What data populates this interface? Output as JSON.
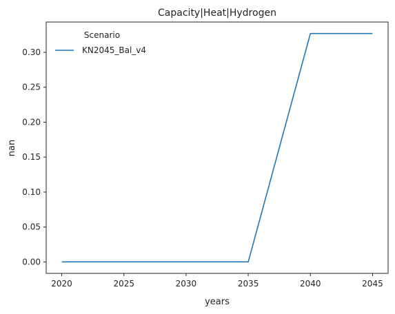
{
  "chart_data": {
    "type": "line",
    "title": "Capacity|Heat|Hydrogen",
    "xlabel": "years",
    "ylabel": "nan",
    "x": [
      2020,
      2025,
      2030,
      2035,
      2040,
      2045
    ],
    "series": [
      {
        "name": "KN2045_Bal_v4",
        "color": "#1f77b4",
        "values": [
          0.0,
          0.0,
          0.0,
          0.0,
          0.327,
          0.327
        ]
      }
    ],
    "xlim": [
      2018.75,
      2046.25
    ],
    "ylim": [
      -0.0164,
      0.3434
    ],
    "xticks": [
      2020,
      2025,
      2030,
      2035,
      2040,
      2045
    ],
    "yticks": [
      0.0,
      0.05,
      0.1,
      0.15,
      0.2,
      0.25,
      0.3
    ],
    "ytick_labels": [
      "0.00",
      "0.05",
      "0.10",
      "0.15",
      "0.20",
      "0.25",
      "0.30"
    ],
    "legend": {
      "title": "Scenario",
      "placement": "top-left",
      "entries": [
        "KN2045_Bal_v4"
      ]
    },
    "grid": false
  }
}
